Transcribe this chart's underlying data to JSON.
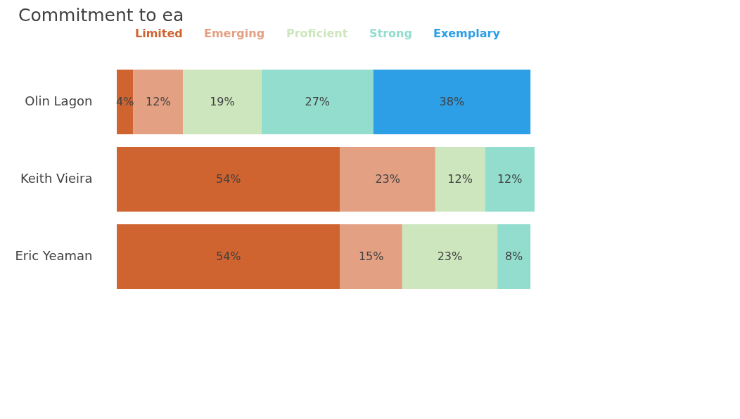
{
  "chart_data": {
    "type": "bar",
    "title": "Commitment to ea",
    "orientation": "horizontal",
    "stacked": true,
    "categories": [
      "Olin Lagon",
      "Keith Vieira",
      "Eric Yeaman"
    ],
    "series": [
      {
        "name": "Limited",
        "color": "#cf6431",
        "values": [
          4,
          54,
          54
        ],
        "value_labels": [
          "4%",
          "54%",
          "54%"
        ]
      },
      {
        "name": "Emerging",
        "color": "#e3a083",
        "values": [
          12,
          23,
          15
        ],
        "value_labels": [
          "12%",
          "23%",
          "15%"
        ]
      },
      {
        "name": "Proficient",
        "color": "#cde6bd",
        "values": [
          19,
          12,
          23
        ],
        "value_labels": [
          "19%",
          "12%",
          "23%"
        ]
      },
      {
        "name": "Strong",
        "color": "#93ddce",
        "values": [
          27,
          12,
          8
        ],
        "value_labels": [
          "27%",
          "12%",
          "8%"
        ]
      },
      {
        "name": "Exemplary",
        "color": "#2d9fe6",
        "values": [
          38,
          null,
          null
        ],
        "value_labels": [
          "38%",
          null,
          null
        ]
      }
    ],
    "legend": "top"
  }
}
